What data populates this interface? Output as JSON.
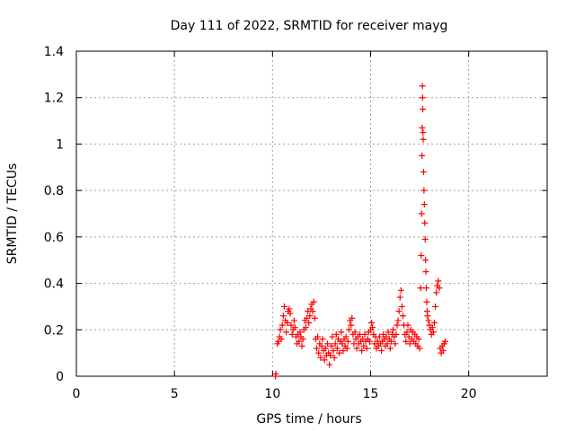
{
  "chart_data": {
    "type": "scatter",
    "title": "Day 111 of 2022, SRMTID for receiver mayg",
    "xlabel": "GPS time / hours",
    "ylabel": "SRMTID / TECUs",
    "xlim": [
      0,
      24
    ],
    "ylim": [
      0,
      1.4
    ],
    "xticks": [
      0,
      5,
      10,
      15,
      20
    ],
    "xtick_labels": [
      "0",
      "5",
      "10",
      "15",
      "20"
    ],
    "yticks": [
      0,
      0.2,
      0.4,
      0.6,
      0.8,
      1.0,
      1.2,
      1.4
    ],
    "ytick_labels": [
      "0",
      "0.2",
      "0.4",
      "0.6",
      "0.8",
      "1",
      "1.2",
      "1.4"
    ],
    "grid": true,
    "marker": "+",
    "series": [
      {
        "color": "#ff0000",
        "points": [
          [
            10.15,
            0.0
          ],
          [
            10.17,
            0.01
          ],
          [
            10.25,
            0.14
          ],
          [
            10.3,
            0.15
          ],
          [
            10.35,
            0.17
          ],
          [
            10.4,
            0.2
          ],
          [
            10.45,
            0.16
          ],
          [
            10.5,
            0.22
          ],
          [
            10.55,
            0.26
          ],
          [
            10.6,
            0.3
          ],
          [
            10.65,
            0.24
          ],
          [
            10.7,
            0.19
          ],
          [
            10.75,
            0.23
          ],
          [
            10.8,
            0.28
          ],
          [
            10.85,
            0.29
          ],
          [
            10.9,
            0.27
          ],
          [
            10.95,
            0.22
          ],
          [
            11.0,
            0.18
          ],
          [
            11.05,
            0.2
          ],
          [
            11.1,
            0.24
          ],
          [
            11.15,
            0.21
          ],
          [
            11.2,
            0.17
          ],
          [
            11.25,
            0.14
          ],
          [
            11.3,
            0.18
          ],
          [
            11.35,
            0.15
          ],
          [
            11.4,
            0.19
          ],
          [
            11.45,
            0.17
          ],
          [
            11.5,
            0.13
          ],
          [
            11.55,
            0.16
          ],
          [
            11.6,
            0.2
          ],
          [
            11.65,
            0.24
          ],
          [
            11.7,
            0.21
          ],
          [
            11.75,
            0.25
          ],
          [
            11.8,
            0.28
          ],
          [
            11.85,
            0.23
          ],
          [
            11.9,
            0.26
          ],
          [
            11.95,
            0.29
          ],
          [
            12.0,
            0.31
          ],
          [
            12.05,
            0.28
          ],
          [
            12.1,
            0.32
          ],
          [
            12.15,
            0.25
          ],
          [
            12.2,
            0.16
          ],
          [
            12.25,
            0.12
          ],
          [
            12.3,
            0.17
          ],
          [
            12.35,
            0.1
          ],
          [
            12.4,
            0.14
          ],
          [
            12.45,
            0.08
          ],
          [
            12.5,
            0.13
          ],
          [
            12.55,
            0.16
          ],
          [
            12.6,
            0.11
          ],
          [
            12.65,
            0.07
          ],
          [
            12.7,
            0.12
          ],
          [
            12.75,
            0.09
          ],
          [
            12.8,
            0.14
          ],
          [
            12.85,
            0.1
          ],
          [
            12.9,
            0.05
          ],
          [
            12.95,
            0.09
          ],
          [
            13.0,
            0.13
          ],
          [
            13.05,
            0.17
          ],
          [
            13.1,
            0.11
          ],
          [
            13.15,
            0.08
          ],
          [
            13.2,
            0.14
          ],
          [
            13.25,
            0.18
          ],
          [
            13.3,
            0.12
          ],
          [
            13.35,
            0.16
          ],
          [
            13.4,
            0.1
          ],
          [
            13.45,
            0.15
          ],
          [
            13.5,
            0.19
          ],
          [
            13.55,
            0.14
          ],
          [
            13.6,
            0.11
          ],
          [
            13.65,
            0.16
          ],
          [
            13.7,
            0.13
          ],
          [
            13.75,
            0.17
          ],
          [
            13.8,
            0.12
          ],
          [
            13.85,
            0.15
          ],
          [
            13.9,
            0.2
          ],
          [
            13.95,
            0.24
          ],
          [
            14.0,
            0.22
          ],
          [
            14.05,
            0.25
          ],
          [
            14.1,
            0.18
          ],
          [
            14.15,
            0.14
          ],
          [
            14.2,
            0.19
          ],
          [
            14.25,
            0.16
          ],
          [
            14.3,
            0.12
          ],
          [
            14.35,
            0.17
          ],
          [
            14.4,
            0.14
          ],
          [
            14.45,
            0.18
          ],
          [
            14.5,
            0.15
          ],
          [
            14.55,
            0.11
          ],
          [
            14.6,
            0.16
          ],
          [
            14.65,
            0.13
          ],
          [
            14.7,
            0.18
          ],
          [
            14.75,
            0.15
          ],
          [
            14.8,
            0.12
          ],
          [
            14.85,
            0.16
          ],
          [
            14.9,
            0.19
          ],
          [
            14.95,
            0.15
          ],
          [
            15.0,
            0.2
          ],
          [
            15.05,
            0.23
          ],
          [
            15.1,
            0.21
          ],
          [
            15.15,
            0.18
          ],
          [
            15.2,
            0.14
          ],
          [
            15.25,
            0.17
          ],
          [
            15.3,
            0.12
          ],
          [
            15.35,
            0.15
          ],
          [
            15.4,
            0.13
          ],
          [
            15.45,
            0.17
          ],
          [
            15.5,
            0.14
          ],
          [
            15.55,
            0.11
          ],
          [
            15.6,
            0.15
          ],
          [
            15.65,
            0.18
          ],
          [
            15.7,
            0.16
          ],
          [
            15.75,
            0.13
          ],
          [
            15.8,
            0.17
          ],
          [
            15.85,
            0.14
          ],
          [
            15.9,
            0.19
          ],
          [
            15.95,
            0.16
          ],
          [
            16.0,
            0.12
          ],
          [
            16.05,
            0.15
          ],
          [
            16.1,
            0.18
          ],
          [
            16.15,
            0.2
          ],
          [
            16.2,
            0.17
          ],
          [
            16.25,
            0.14
          ],
          [
            16.3,
            0.18
          ],
          [
            16.35,
            0.22
          ],
          [
            16.4,
            0.24
          ],
          [
            16.45,
            0.28
          ],
          [
            16.5,
            0.34
          ],
          [
            16.55,
            0.37
          ],
          [
            16.6,
            0.3
          ],
          [
            16.65,
            0.26
          ],
          [
            16.7,
            0.22
          ],
          [
            16.75,
            0.18
          ],
          [
            16.8,
            0.15
          ],
          [
            16.85,
            0.19
          ],
          [
            16.9,
            0.22
          ],
          [
            16.95,
            0.17
          ],
          [
            17.0,
            0.14
          ],
          [
            17.05,
            0.2
          ],
          [
            17.1,
            0.16
          ],
          [
            17.15,
            0.19
          ],
          [
            17.2,
            0.15
          ],
          [
            17.25,
            0.18
          ],
          [
            17.3,
            0.14
          ],
          [
            17.35,
            0.17
          ],
          [
            17.4,
            0.13
          ],
          [
            17.45,
            0.16
          ],
          [
            17.5,
            0.12
          ],
          [
            17.55,
            0.38
          ],
          [
            17.58,
            0.52
          ],
          [
            17.6,
            0.7
          ],
          [
            17.62,
            0.95
          ],
          [
            17.63,
            1.07
          ],
          [
            17.64,
            1.25
          ],
          [
            17.65,
            1.2
          ],
          [
            17.66,
            1.15
          ],
          [
            17.67,
            1.05
          ],
          [
            17.68,
            1.02
          ],
          [
            17.7,
            0.88
          ],
          [
            17.72,
            0.8
          ],
          [
            17.74,
            0.74
          ],
          [
            17.76,
            0.66
          ],
          [
            17.78,
            0.59
          ],
          [
            17.8,
            0.5
          ],
          [
            17.82,
            0.45
          ],
          [
            17.84,
            0.38
          ],
          [
            17.86,
            0.32
          ],
          [
            17.88,
            0.28
          ],
          [
            17.9,
            0.26
          ],
          [
            17.95,
            0.24
          ],
          [
            18.0,
            0.22
          ],
          [
            18.05,
            0.2
          ],
          [
            18.1,
            0.18
          ],
          [
            18.15,
            0.21
          ],
          [
            18.2,
            0.19
          ],
          [
            18.25,
            0.23
          ],
          [
            18.3,
            0.3
          ],
          [
            18.35,
            0.36
          ],
          [
            18.4,
            0.39
          ],
          [
            18.45,
            0.41
          ],
          [
            18.5,
            0.38
          ],
          [
            18.55,
            0.12
          ],
          [
            18.6,
            0.1
          ],
          [
            18.65,
            0.13
          ],
          [
            18.7,
            0.11
          ],
          [
            18.75,
            0.14
          ],
          [
            18.8,
            0.15
          ]
        ]
      }
    ]
  }
}
